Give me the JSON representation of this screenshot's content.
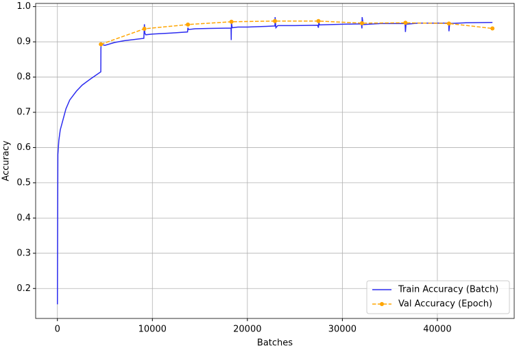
{
  "chart_data": {
    "type": "line",
    "xlabel": "Batches",
    "ylabel": "Accuracy",
    "xlim": [
      -2290,
      48090
    ],
    "ylim": [
      0.115,
      1.009
    ],
    "xticks": [
      0,
      10000,
      20000,
      30000,
      40000
    ],
    "yticks": [
      0.2,
      0.3,
      0.4,
      0.5,
      0.6,
      0.7,
      0.8,
      0.9,
      {
        "value": 1.0,
        "label": "1.0"
      }
    ],
    "grid": true,
    "legend": "lower right",
    "series": [
      {
        "name": "Train Accuracy (Batch)",
        "color": "#2b2bf0",
        "style": "solid",
        "x": [
          0,
          50,
          150,
          300,
          600,
          900,
          1300,
          2000,
          2600,
          3500,
          4570,
          4580,
          4600,
          5000,
          6000,
          7000,
          9100,
          9160,
          9200,
          9300,
          10000,
          12000,
          13700,
          13740,
          13800,
          14500,
          16000,
          18280,
          18300,
          18320,
          18400,
          19000,
          20000,
          22000,
          22900,
          22920,
          23000,
          23200,
          25000,
          27400,
          27480,
          27520,
          27600,
          30000,
          32000,
          32060,
          32080,
          32200,
          34000,
          36600,
          36640,
          36700,
          38000,
          41200,
          41220,
          41300,
          43000,
          45800
        ],
        "values": [
          0.155,
          0.58,
          0.62,
          0.65,
          0.68,
          0.71,
          0.735,
          0.76,
          0.777,
          0.795,
          0.815,
          0.88,
          0.893,
          0.89,
          0.898,
          0.903,
          0.91,
          0.95,
          0.925,
          0.92,
          0.922,
          0.925,
          0.928,
          0.94,
          0.935,
          0.937,
          0.938,
          0.939,
          0.905,
          0.955,
          0.94,
          0.942,
          0.942,
          0.944,
          0.945,
          0.97,
          0.94,
          0.946,
          0.946,
          0.947,
          0.94,
          0.955,
          0.948,
          0.95,
          0.951,
          0.938,
          0.97,
          0.949,
          0.952,
          0.952,
          0.928,
          0.95,
          0.953,
          0.953,
          0.93,
          0.952,
          0.954,
          0.955
        ]
      },
      {
        "name": "Val Accuracy (Epoch)",
        "color": "#ffa500",
        "style": "dashed",
        "marker": "o",
        "x": [
          4580,
          9160,
          13740,
          18320,
          22900,
          27480,
          32060,
          36640,
          41220,
          45800
        ],
        "values": [
          0.893,
          0.937,
          0.949,
          0.957,
          0.959,
          0.959,
          0.953,
          0.954,
          0.952,
          0.938
        ]
      }
    ]
  }
}
